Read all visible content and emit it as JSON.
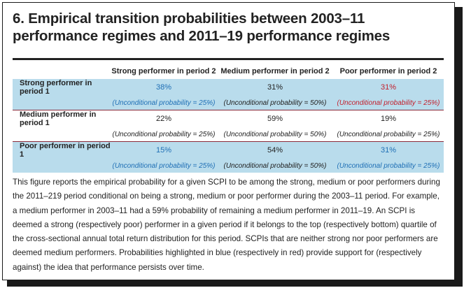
{
  "figure": {
    "title": "6. Empirical transition probabilities between 2003–11 performance regimes and 2011–19 performance regimes"
  },
  "table": {
    "columns": [
      "Strong performer in period 2",
      "Medium performer in period 2",
      "Poor performer in period 2"
    ],
    "rows": [
      {
        "label": "Strong performer in period 1",
        "values": [
          "38%",
          "31%",
          "31%"
        ],
        "unconditional": [
          "(Unconditional probability = 25%)",
          "(Unconditional probability = 50%)",
          "(Unconditional probability = 25%)"
        ],
        "highlight": [
          "support",
          "none",
          "against"
        ]
      },
      {
        "label": "Medium performer in period 1",
        "values": [
          "22%",
          "59%",
          "19%"
        ],
        "unconditional": [
          "(Unconditional probability = 25%)",
          "(Unconditional probability = 50%)",
          "(Unconditional probability = 25%)"
        ],
        "highlight": [
          "none",
          "none",
          "none"
        ]
      },
      {
        "label": "Poor performer in period 1",
        "values": [
          "15%",
          "54%",
          "31%"
        ],
        "unconditional": [
          "(Unconditional probability = 25%)",
          "(Unconditional probability = 50%)",
          "(Unconditional probability = 25%)"
        ],
        "highlight": [
          "support",
          "none",
          "support"
        ]
      }
    ]
  },
  "caption": "This figure reports the empirical probability for a given SCPI to be among the strong, medium or poor performers during the 2011–219 period conditional on being a strong, medium or poor performer during the 2003–11 period. For example, a medium performer in 2003–11 had a 59% probability of remaining a medium performer in 2011–19. An SCPI is deemed a strong (respectively poor) performer in a given period if it belongs to the top (respectively bottom) quartile of the cross-sectional annual total return distribution for this period. SCPIs that are neither strong nor poor performers are deemed medium performers. Probabilities highlighted in blue (respectively in red) provide support for (respectively against) the idea that performance persists over time.",
  "colors": {
    "row_band": "#b9dcec",
    "support": "#1f6fb5",
    "against": "#c3202d",
    "row_separator": "#8a2b3a"
  }
}
